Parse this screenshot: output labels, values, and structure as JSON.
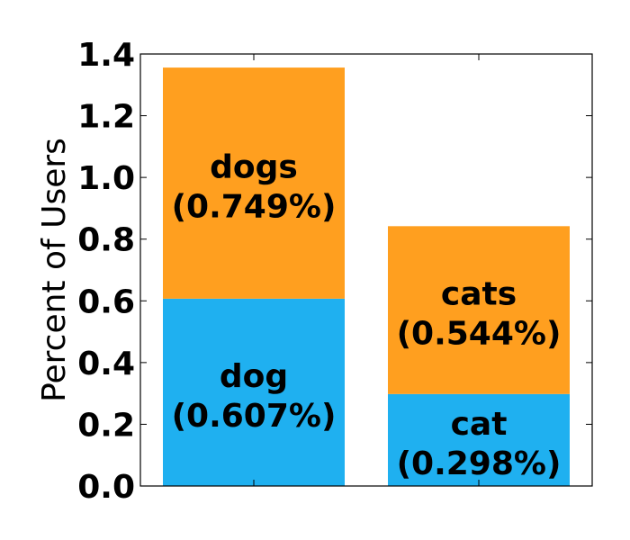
{
  "chart_data": {
    "type": "bar",
    "stacked": true,
    "categories": [
      "",
      ""
    ],
    "series": [
      {
        "color": "#1fb0f0",
        "values": [
          0.607,
          0.298
        ]
      },
      {
        "color": "#ff9f1f",
        "values": [
          0.749,
          0.544
        ]
      }
    ],
    "data_labels": [
      [
        {
          "name": "dog",
          "pct": "(0.607%)"
        },
        {
          "name": "cat",
          "pct": "(0.298%)"
        }
      ],
      [
        {
          "name": "dogs",
          "pct": "(0.749%)"
        },
        {
          "name": "cats",
          "pct": "(0.544%)"
        }
      ]
    ],
    "ylabel": "Percent of Users",
    "xlabel": "",
    "title": "",
    "ylim": [
      0,
      1.4
    ],
    "yticks": [
      "0.0",
      "0.2",
      "0.4",
      "0.6",
      "0.8",
      "1.0",
      "1.2",
      "1.4"
    ],
    "grid": false,
    "legend": "none"
  }
}
